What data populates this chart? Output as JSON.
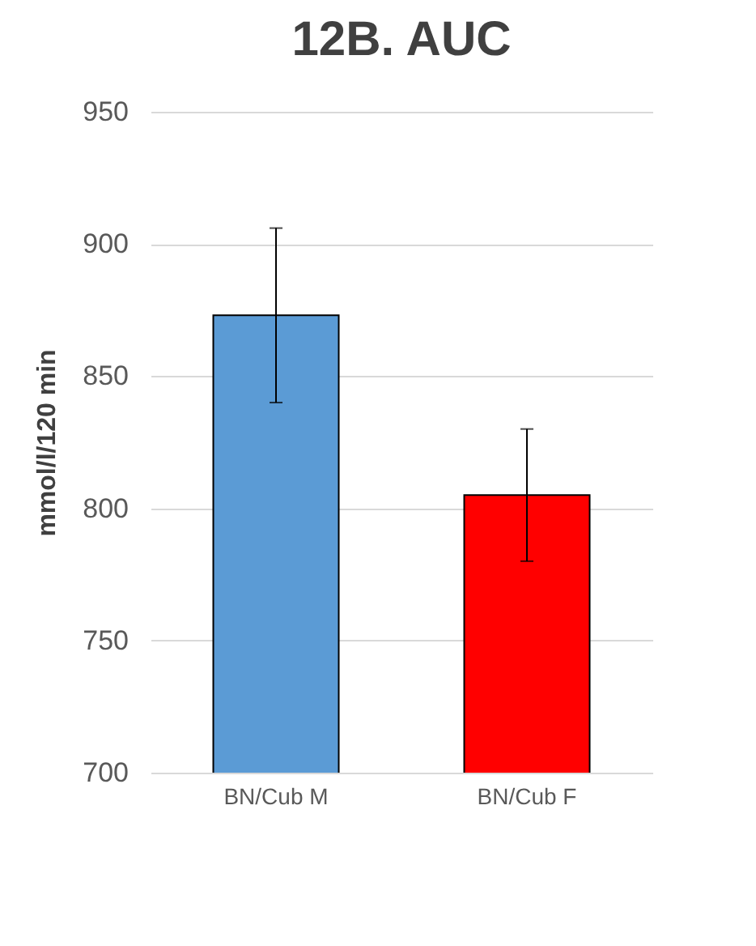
{
  "chart_data": {
    "type": "bar",
    "title": "12B. AUC",
    "ylabel": "mmol/l/120 min",
    "categories": [
      "BN/Cub M",
      "BN/Cub F"
    ],
    "values": [
      873,
      805
    ],
    "colors": [
      "#5b9bd5",
      "#ff0000"
    ],
    "errors": [
      33,
      25
    ],
    "ylim": [
      700,
      950
    ],
    "yticks": [
      700,
      750,
      800,
      850,
      900,
      950
    ],
    "grid": "y"
  }
}
